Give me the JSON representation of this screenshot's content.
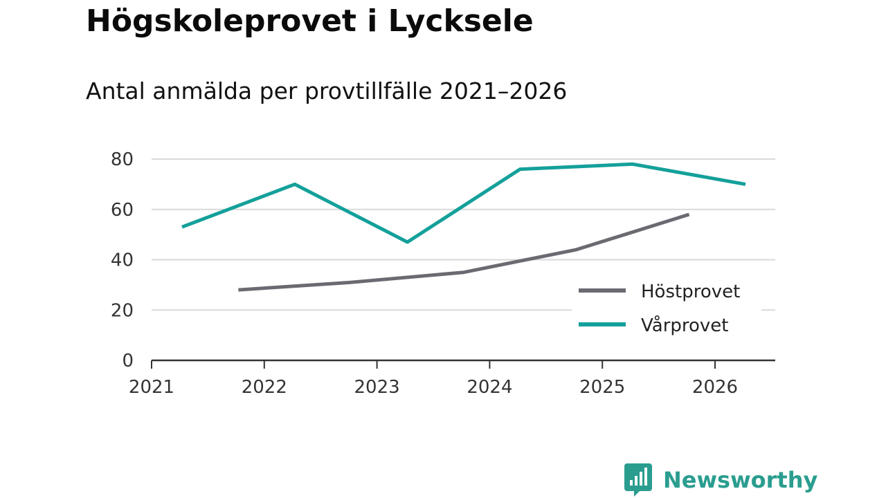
{
  "header": {
    "title": "Högskoleprovet i Lycksele",
    "subtitle": "Antal anmälda per provtillfälle 2021–2026"
  },
  "brand": {
    "name": "Newsworthy",
    "color": "#2a9d8f"
  },
  "chart_data": {
    "type": "line",
    "title": "Högskoleprovet i Lycksele",
    "subtitle": "Antal anmälda per provtillfälle 2021–2026",
    "xlabel": "",
    "ylabel": "",
    "xlim": [
      2021,
      2026.55
    ],
    "ylim": [
      0,
      80
    ],
    "yticks": [
      0,
      20,
      40,
      60,
      80
    ],
    "xticks": [
      2021,
      2022,
      2023,
      2024,
      2025,
      2026
    ],
    "xtick_labels": [
      "2021",
      "2022",
      "2023",
      "2024",
      "2025",
      "2026"
    ],
    "grid": true,
    "legend_position": "bottom-right",
    "series": [
      {
        "name": "Höstprovet",
        "color": "#6b6a72",
        "x": [
          2021.77,
          2022.77,
          2023.77,
          2024.77,
          2025.77
        ],
        "values": [
          28,
          31,
          35,
          44,
          58
        ]
      },
      {
        "name": "Vårprovet",
        "color": "#14a09a",
        "x": [
          2021.27,
          2022.27,
          2023.27,
          2024.27,
          2025.27,
          2026.27
        ],
        "values": [
          53,
          70,
          47,
          76,
          78,
          70
        ]
      }
    ]
  }
}
